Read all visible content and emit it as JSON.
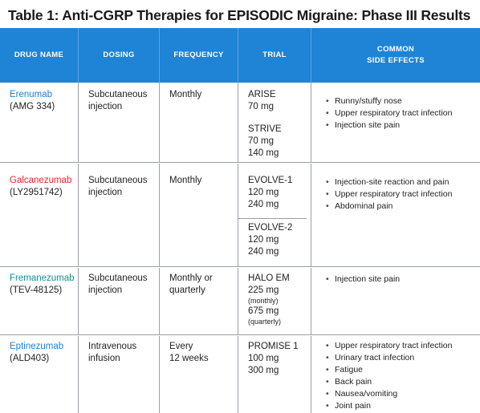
{
  "title": "Table 1: Anti-CGRP Therapies for EPISODIC Migraine: Phase III Results",
  "colors": {
    "header_bg": "#1f83d6",
    "erenumab": "#1f7fd0",
    "galcanezumab": "#e0252b",
    "fremanezumab": "#12908a",
    "eptinezumab": "#1f7fd0"
  },
  "headers": {
    "drug_name": "DRUG NAME",
    "dosing": "DOSING",
    "frequency": "FREQUENCY",
    "trial": "TRIAL",
    "side_effects_line1": "COMMON",
    "side_effects_line2": "SIDE EFFECTS"
  },
  "rows": [
    {
      "name": "Erenumab",
      "code": "(AMG 334)",
      "dosing": [
        "Subcutaneous",
        "injection"
      ],
      "frequency": [
        "Monthly"
      ],
      "trials": [
        {
          "name": "ARISE",
          "doses": [
            "70 mg"
          ]
        },
        {
          "name": "STRIVE",
          "doses": [
            "70 mg",
            "140 mg"
          ]
        }
      ],
      "side_effects": [
        "Runny/stuffy nose",
        "Upper respiratory tract infection",
        "Injection site pain"
      ]
    },
    {
      "name": "Galcanezumab",
      "code": "(LY2951742)",
      "dosing": [
        "Subcutaneous",
        "injection"
      ],
      "frequency": [
        "Monthly"
      ],
      "trials": [
        {
          "name": "EVOLVE-1",
          "doses": [
            "120 mg",
            "240 mg"
          ]
        },
        {
          "name": "EVOLVE-2",
          "doses": [
            "120 mg",
            "240 mg"
          ]
        }
      ],
      "side_effects": [
        "Injection-site reaction and pain",
        "Upper respiratory tract infection",
        "Abdominal pain"
      ]
    },
    {
      "name": "Fremanezumab",
      "code": "(TEV-48125)",
      "dosing": [
        "Subcutaneous",
        "injection"
      ],
      "frequency": [
        "Monthly or",
        "quarterly"
      ],
      "trials": [
        {
          "name": "HALO EM",
          "doses": [
            "225 mg",
            "(monthly)",
            "675 mg",
            "(quarterly)"
          ]
        }
      ],
      "side_effects": [
        "Injection site pain"
      ]
    },
    {
      "name": "Eptinezumab",
      "code": "(ALD403)",
      "dosing": [
        "Intravenous",
        "infusion"
      ],
      "frequency": [
        "Every",
        "12 weeks"
      ],
      "trials": [
        {
          "name": "PROMISE 1",
          "doses": [
            "100 mg",
            "300 mg"
          ]
        }
      ],
      "side_effects": [
        "Upper respiratory tract infection",
        "Urinary tract infection",
        "Fatigue",
        "Back pain",
        "Nausea/vomiting",
        "Joint pain"
      ]
    }
  ]
}
